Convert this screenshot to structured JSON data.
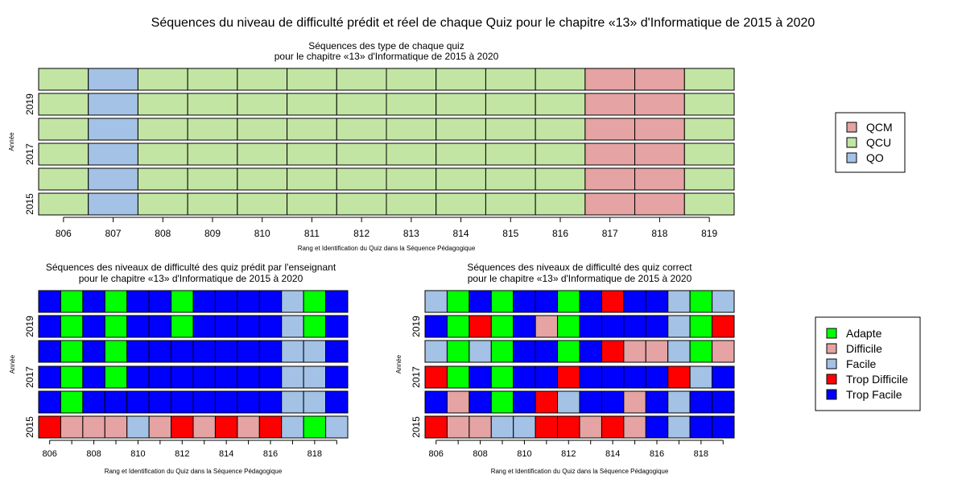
{
  "page": {
    "title": "Séquences du niveau de difficulté prédit et réel de chaque Quiz pour le chapitre «13» d'Informatique de 2015 à 2020"
  },
  "colors": {
    "QCM": "#E5A3A3",
    "QCU": "#C2E5A3",
    "QO": "#A3C2E5",
    "Adapte": "#00FF00",
    "Difficile": "#E5A3A3",
    "Facile": "#A3C2E5",
    "Trop Difficile": "#FF0000",
    "Trop Facile": "#0000FF"
  },
  "chart_data": [
    {
      "id": "types",
      "type": "heatmap",
      "title": "Séquences des type de chaque quiz",
      "subtitle": "pour le chapitre «13» d'Informatique de 2015 à 2020",
      "xlabel": "Rang et Identification du Quiz dans la Séquence Pédagogique",
      "ylabel": "Année",
      "x": [
        806,
        807,
        808,
        809,
        810,
        811,
        812,
        813,
        814,
        815,
        816,
        817,
        818,
        819
      ],
      "x_tick_labels": [
        "806",
        "807",
        "808",
        "809",
        "810",
        "811",
        "812",
        "813",
        "814",
        "815",
        "816",
        "817",
        "818",
        "819"
      ],
      "y_tick_labels": [
        "2015",
        "2017",
        "2019"
      ],
      "rows": [
        {
          "year": 2015,
          "cells": [
            "QCU",
            "QO",
            "QCU",
            "QCU",
            "QCU",
            "QCU",
            "QCU",
            "QCU",
            "QCU",
            "QCU",
            "QCU",
            "QCM",
            "QCM",
            "QCU"
          ]
        },
        {
          "year": 2016,
          "cells": [
            "QCU",
            "QO",
            "QCU",
            "QCU",
            "QCU",
            "QCU",
            "QCU",
            "QCU",
            "QCU",
            "QCU",
            "QCU",
            "QCM",
            "QCM",
            "QCU"
          ]
        },
        {
          "year": 2017,
          "cells": [
            "QCU",
            "QO",
            "QCU",
            "QCU",
            "QCU",
            "QCU",
            "QCU",
            "QCU",
            "QCU",
            "QCU",
            "QCU",
            "QCM",
            "QCM",
            "QCU"
          ]
        },
        {
          "year": 2018,
          "cells": [
            "QCU",
            "QO",
            "QCU",
            "QCU",
            "QCU",
            "QCU",
            "QCU",
            "QCU",
            "QCU",
            "QCU",
            "QCU",
            "QCM",
            "QCM",
            "QCU"
          ]
        },
        {
          "year": 2019,
          "cells": [
            "QCU",
            "QO",
            "QCU",
            "QCU",
            "QCU",
            "QCU",
            "QCU",
            "QCU",
            "QCU",
            "QCU",
            "QCU",
            "QCM",
            "QCM",
            "QCU"
          ]
        },
        {
          "year": 2020,
          "cells": [
            "QCU",
            "QO",
            "QCU",
            "QCU",
            "QCU",
            "QCU",
            "QCU",
            "QCU",
            "QCU",
            "QCU",
            "QCU",
            "QCM",
            "QCM",
            "QCU"
          ]
        }
      ],
      "legend": [
        "QCM",
        "QCU",
        "QO"
      ],
      "legend_position": "right"
    },
    {
      "id": "predicted",
      "type": "heatmap",
      "title": "Séquences des niveaux de difficulté des quiz prédit par l'enseignant",
      "subtitle": "pour le chapitre «13» d'Informatique de 2015 à 2020",
      "xlabel": "Rang et Identification du Quiz dans la Séquence Pédagogique",
      "ylabel": "Année",
      "x": [
        806,
        807,
        808,
        809,
        810,
        811,
        812,
        813,
        814,
        815,
        816,
        817,
        818,
        819
      ],
      "x_tick_labels": [
        "806",
        "808",
        "810",
        "812",
        "814",
        "816",
        "818"
      ],
      "y_tick_labels": [
        "2015",
        "2017",
        "2019"
      ],
      "rows": [
        {
          "year": 2015,
          "cells": [
            "Trop Difficile",
            "Difficile",
            "Difficile",
            "Difficile",
            "Facile",
            "Difficile",
            "Trop Difficile",
            "Difficile",
            "Trop Difficile",
            "Difficile",
            "Trop Difficile",
            "Facile",
            "Adapte",
            "Facile"
          ]
        },
        {
          "year": 2016,
          "cells": [
            "Trop Facile",
            "Adapte",
            "Trop Facile",
            "Trop Facile",
            "Trop Facile",
            "Trop Facile",
            "Trop Facile",
            "Trop Facile",
            "Trop Facile",
            "Trop Facile",
            "Trop Facile",
            "Facile",
            "Facile",
            "Trop Facile"
          ]
        },
        {
          "year": 2017,
          "cells": [
            "Trop Facile",
            "Adapte",
            "Trop Facile",
            "Adapte",
            "Trop Facile",
            "Trop Facile",
            "Trop Facile",
            "Trop Facile",
            "Trop Facile",
            "Trop Facile",
            "Trop Facile",
            "Facile",
            "Facile",
            "Trop Facile"
          ]
        },
        {
          "year": 2018,
          "cells": [
            "Trop Facile",
            "Adapte",
            "Trop Facile",
            "Adapte",
            "Trop Facile",
            "Trop Facile",
            "Trop Facile",
            "Trop Facile",
            "Trop Facile",
            "Trop Facile",
            "Trop Facile",
            "Facile",
            "Facile",
            "Trop Facile"
          ]
        },
        {
          "year": 2019,
          "cells": [
            "Trop Facile",
            "Adapte",
            "Trop Facile",
            "Adapte",
            "Trop Facile",
            "Trop Facile",
            "Adapte",
            "Trop Facile",
            "Trop Facile",
            "Trop Facile",
            "Trop Facile",
            "Facile",
            "Adapte",
            "Trop Facile"
          ]
        },
        {
          "year": 2020,
          "cells": [
            "Trop Facile",
            "Adapte",
            "Trop Facile",
            "Adapte",
            "Trop Facile",
            "Trop Facile",
            "Adapte",
            "Trop Facile",
            "Trop Facile",
            "Trop Facile",
            "Trop Facile",
            "Facile",
            "Adapte",
            "Trop Facile"
          ]
        }
      ]
    },
    {
      "id": "correct",
      "type": "heatmap",
      "title": "Séquences des niveaux de difficulté des quiz correct",
      "subtitle": "pour le chapitre «13» d'Informatique de 2015 à 2020",
      "xlabel": "Rang et Identification du Quiz dans la Séquence Pédagogique",
      "ylabel": "Année",
      "x": [
        806,
        807,
        808,
        809,
        810,
        811,
        812,
        813,
        814,
        815,
        816,
        817,
        818,
        819
      ],
      "x_tick_labels": [
        "806",
        "808",
        "810",
        "812",
        "814",
        "816",
        "818"
      ],
      "y_tick_labels": [
        "2015",
        "2017",
        "2019"
      ],
      "rows": [
        {
          "year": 2015,
          "cells": [
            "Trop Difficile",
            "Difficile",
            "Difficile",
            "Facile",
            "Facile",
            "Trop Difficile",
            "Trop Difficile",
            "Difficile",
            "Trop Difficile",
            "Difficile",
            "Trop Facile",
            "Facile",
            "Trop Facile",
            "Trop Facile"
          ]
        },
        {
          "year": 2016,
          "cells": [
            "Trop Facile",
            "Difficile",
            "Trop Facile",
            "Adapte",
            "Trop Facile",
            "Trop Difficile",
            "Facile",
            "Trop Facile",
            "Trop Facile",
            "Difficile",
            "Trop Facile",
            "Facile",
            "Trop Facile",
            "Trop Facile"
          ]
        },
        {
          "year": 2017,
          "cells": [
            "Trop Difficile",
            "Adapte",
            "Trop Facile",
            "Adapte",
            "Trop Facile",
            "Trop Facile",
            "Trop Difficile",
            "Trop Facile",
            "Trop Facile",
            "Trop Facile",
            "Trop Facile",
            "Trop Difficile",
            "Facile",
            "Trop Facile"
          ]
        },
        {
          "year": 2018,
          "cells": [
            "Facile",
            "Adapte",
            "Facile",
            "Adapte",
            "Trop Facile",
            "Trop Facile",
            "Adapte",
            "Trop Facile",
            "Trop Difficile",
            "Difficile",
            "Difficile",
            "Facile",
            "Adapte",
            "Difficile"
          ]
        },
        {
          "year": 2019,
          "cells": [
            "Trop Facile",
            "Adapte",
            "Trop Difficile",
            "Adapte",
            "Trop Facile",
            "Difficile",
            "Adapte",
            "Trop Facile",
            "Trop Facile",
            "Trop Facile",
            "Trop Facile",
            "Facile",
            "Adapte",
            "Trop Difficile"
          ]
        },
        {
          "year": 2020,
          "cells": [
            "Facile",
            "Adapte",
            "Trop Facile",
            "Adapte",
            "Trop Facile",
            "Trop Facile",
            "Adapte",
            "Trop Facile",
            "Trop Difficile",
            "Trop Facile",
            "Trop Facile",
            "Facile",
            "Adapte",
            "Facile"
          ]
        }
      ],
      "legend": [
        "Adapte",
        "Difficile",
        "Facile",
        "Trop Difficile",
        "Trop Facile"
      ],
      "legend_position": "right"
    }
  ]
}
